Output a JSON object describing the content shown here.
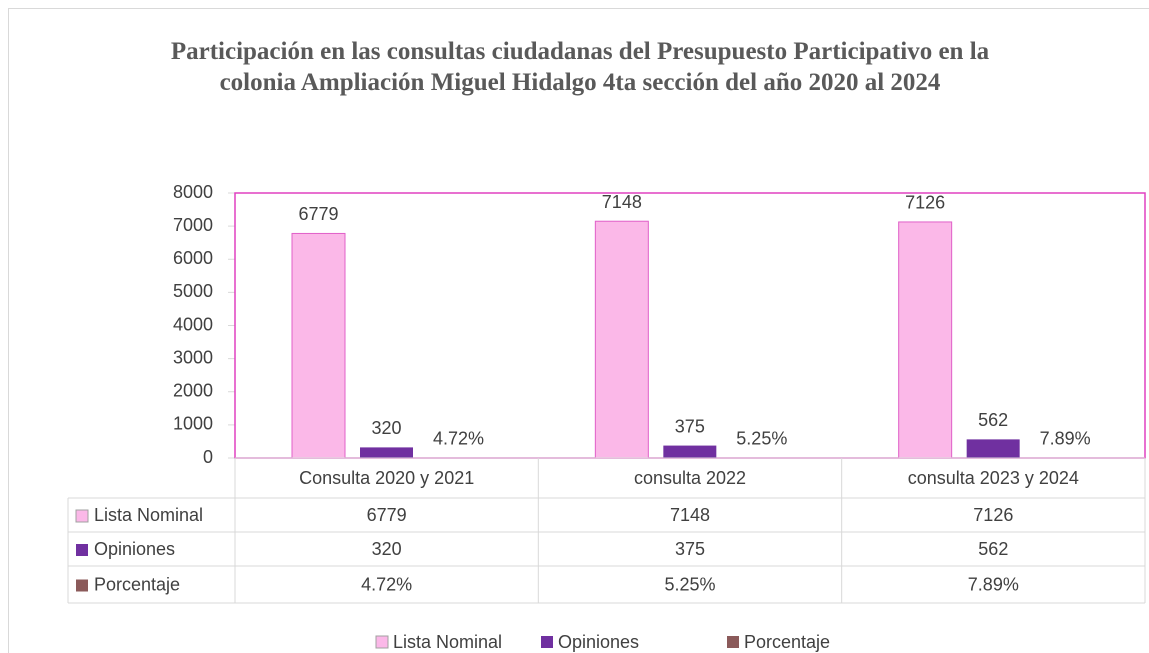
{
  "chart_data": {
    "type": "bar",
    "title": "Participación en las consultas ciudadanas del Presupuesto Participativo en la colonia Ampliación Miguel Hidalgo 4ta sección del año 2020 al 2024",
    "categories": [
      "Consulta 2020 y 2021",
      "consulta 2022",
      "consulta 2023 y 2024"
    ],
    "series": [
      {
        "name": "Lista Nominal",
        "color": "#fbb8e8",
        "values": [
          6779,
          7148,
          7126
        ]
      },
      {
        "name": "Opiniones",
        "color": "#7030a0",
        "values": [
          320,
          375,
          562
        ]
      },
      {
        "name": "Porcentaje",
        "color": "#8b5a5a",
        "values": [
          4.72,
          5.25,
          7.89
        ],
        "value_labels": [
          "4.72%",
          "5.25%",
          "7.89%"
        ]
      }
    ],
    "ylim": [
      0,
      8000
    ],
    "yticks": [
      0,
      1000,
      2000,
      3000,
      4000,
      5000,
      6000,
      7000,
      8000
    ],
    "data_table": true,
    "legend": "bottom"
  }
}
